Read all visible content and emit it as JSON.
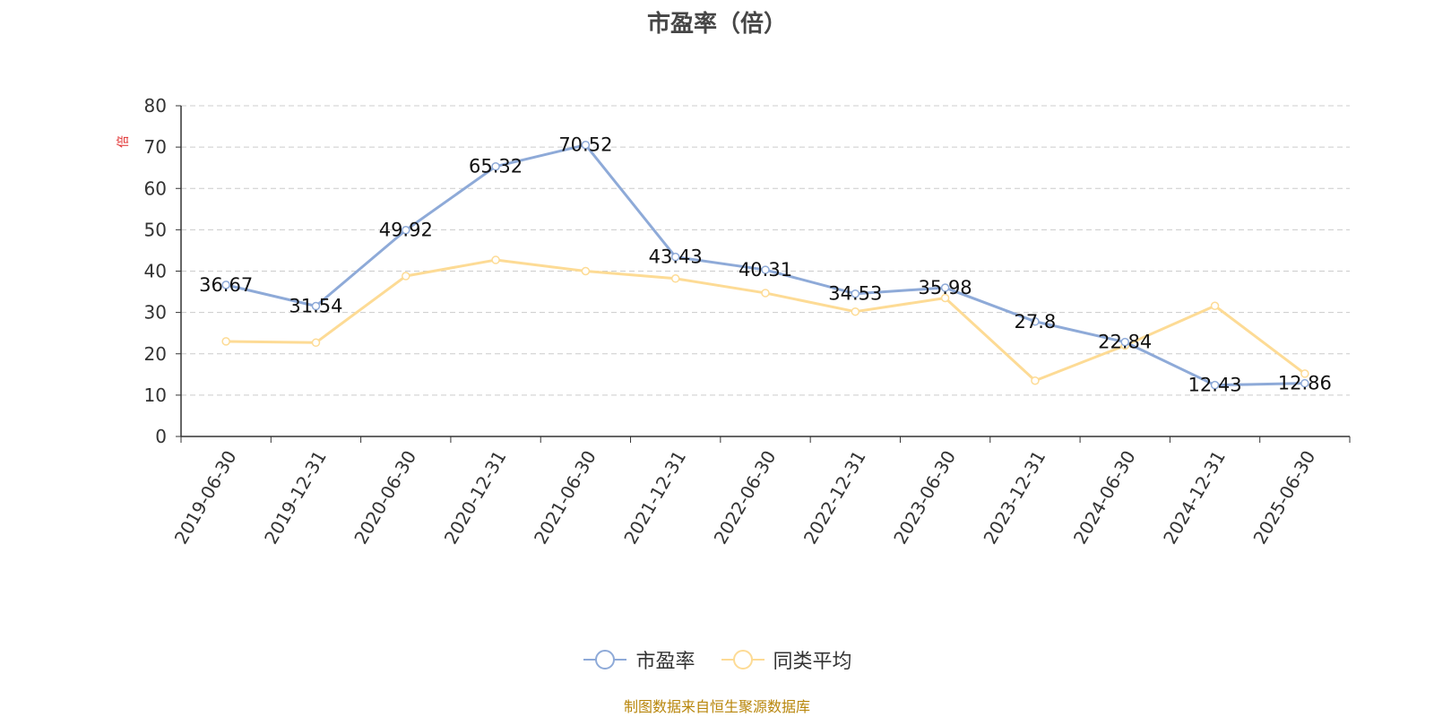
{
  "chart_data": {
    "type": "line",
    "title": "市盈率（倍）",
    "ylabel": "倍",
    "ylim": [
      0,
      80
    ],
    "yticks": [
      0,
      10,
      20,
      30,
      40,
      50,
      60,
      70,
      80
    ],
    "categories": [
      "2019-06-30",
      "2019-12-31",
      "2020-06-30",
      "2020-12-31",
      "2021-06-30",
      "2021-12-31",
      "2022-06-30",
      "2022-12-31",
      "2023-06-30",
      "2023-12-31",
      "2024-06-30",
      "2024-12-31",
      "2025-06-30"
    ],
    "series": [
      {
        "name": "市盈率",
        "color": "#8eaad8",
        "show_labels": true,
        "values": [
          36.67,
          31.54,
          49.92,
          65.32,
          70.52,
          43.43,
          40.31,
          34.53,
          35.98,
          27.8,
          22.84,
          12.43,
          12.86
        ]
      },
      {
        "name": "同类平均",
        "color": "#fddb95",
        "show_labels": false,
        "values": [
          23.0,
          22.7,
          38.8,
          42.7,
          40.0,
          38.2,
          34.7,
          30.2,
          33.5,
          13.5,
          22.0,
          31.6,
          15.2
        ]
      }
    ],
    "grid": "horizontal-dashed",
    "legend": "bottom-center"
  },
  "footer": "制图数据来自恒生聚源数据库"
}
